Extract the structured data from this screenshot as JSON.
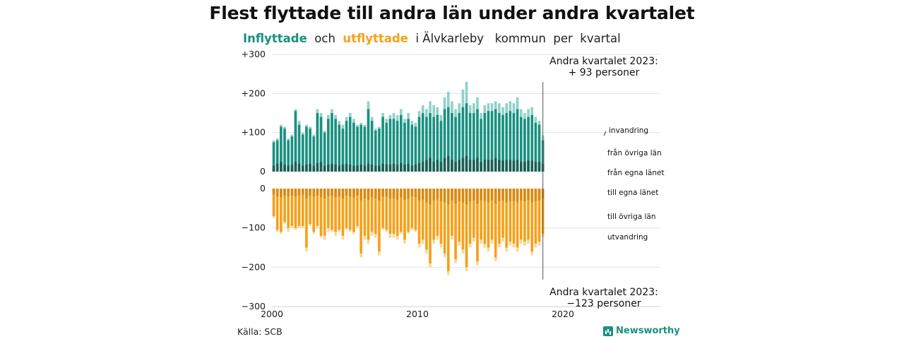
{
  "chart": {
    "title": "Flest flyttade till andra län under andra kvartalet",
    "subtitle_in": "Inflyttade",
    "subtitle_and": "och",
    "subtitle_out": "utflyttade",
    "subtitle_rest": "i Älvkarleby   kommun  per  kvartal",
    "source": "Källa: SCB",
    "brand": "Newsworthy"
  },
  "colors": {
    "in_total": "#8fd2c8",
    "in_other": "#1a9080",
    "in_own": "#1b5e55",
    "out_total": "#f9d89a",
    "out_other": "#f5a11a",
    "out_own": "#d98a12",
    "grid": "#e2e2e2",
    "text": "#1a1a1a"
  },
  "chart_data": {
    "type": "bar",
    "start": "2000 Q1",
    "x_ticks": [
      "2000",
      "2010",
      "2020"
    ],
    "y_ticks": [
      "+300",
      "+200",
      "+100",
      "0",
      "0",
      "−100",
      "−200",
      "−300"
    ],
    "ylim_in": [
      0,
      300
    ],
    "ylim_out": [
      -300,
      0
    ],
    "series_in": [
      {
        "name": "invandring",
        "values": [
          80,
          85,
          120,
          115,
          85,
          95,
          160,
          130,
          100,
          120,
          115,
          95,
          160,
          150,
          105,
          145,
          160,
          145,
          130,
          120,
          140,
          150,
          135,
          120,
          125,
          120,
          180,
          140,
          110,
          115,
          150,
          135,
          145,
          150,
          145,
          160,
          135,
          150,
          130,
          125,
          155,
          170,
          160,
          180,
          170,
          165,
          145,
          190,
          205,
          180,
          160,
          175,
          210,
          230,
          170,
          175,
          190,
          150,
          170,
          175,
          175,
          180,
          175,
          165,
          175,
          180,
          175,
          190,
          160,
          150,
          160,
          165,
          140,
          130,
          93
        ]
      },
      {
        "name": "från övriga län",
        "values": [
          75,
          80,
          115,
          110,
          80,
          90,
          155,
          120,
          95,
          115,
          110,
          90,
          150,
          140,
          100,
          135,
          150,
          135,
          120,
          110,
          130,
          140,
          125,
          115,
          120,
          115,
          160,
          130,
          105,
          110,
          140,
          125,
          135,
          135,
          130,
          145,
          125,
          135,
          120,
          115,
          140,
          150,
          140,
          150,
          140,
          145,
          130,
          160,
          165,
          150,
          140,
          150,
          165,
          175,
          150,
          150,
          160,
          135,
          150,
          155,
          155,
          160,
          150,
          145,
          150,
          155,
          150,
          160,
          140,
          135,
          140,
          145,
          125,
          120,
          80
        ]
      },
      {
        "name": "från egna länet",
        "values": [
          15,
          20,
          25,
          18,
          15,
          18,
          25,
          20,
          15,
          18,
          20,
          15,
          22,
          25,
          15,
          18,
          20,
          18,
          15,
          18,
          20,
          18,
          15,
          15,
          18,
          15,
          20,
          18,
          15,
          15,
          20,
          18,
          18,
          20,
          18,
          22,
          18,
          20,
          15,
          18,
          22,
          25,
          30,
          35,
          25,
          30,
          25,
          35,
          40,
          30,
          25,
          30,
          35,
          40,
          30,
          30,
          35,
          25,
          30,
          30,
          30,
          35,
          30,
          28,
          30,
          30,
          28,
          30,
          25,
          25,
          28,
          28,
          25,
          25,
          20
        ]
      }
    ],
    "series_out": [
      {
        "name": "utvandring",
        "values": [
          75,
          110,
          115,
          90,
          110,
          100,
          105,
          100,
          100,
          160,
          95,
          115,
          100,
          125,
          130,
          110,
          110,
          120,
          110,
          130,
          105,
          110,
          115,
          100,
          175,
          130,
          140,
          120,
          125,
          170,
          105,
          110,
          125,
          125,
          130,
          115,
          140,
          115,
          105,
          110,
          150,
          140,
          165,
          200,
          140,
          130,
          150,
          175,
          220,
          130,
          190,
          145,
          165,
          210,
          150,
          135,
          195,
          140,
          150,
          160,
          140,
          185,
          150,
          135,
          160,
          145,
          150,
          160,
          140,
          145,
          140,
          170,
          150,
          145,
          123
        ]
      },
      {
        "name": "till övriga län",
        "values": [
          70,
          105,
          110,
          85,
          100,
          95,
          100,
          95,
          95,
          150,
          90,
          110,
          95,
          120,
          120,
          100,
          105,
          110,
          105,
          120,
          100,
          105,
          110,
          95,
          165,
          120,
          130,
          110,
          115,
          160,
          100,
          105,
          115,
          115,
          120,
          110,
          130,
          110,
          100,
          105,
          140,
          130,
          155,
          190,
          130,
          120,
          140,
          165,
          210,
          120,
          180,
          135,
          155,
          200,
          140,
          125,
          185,
          130,
          140,
          150,
          130,
          175,
          140,
          125,
          150,
          135,
          140,
          150,
          130,
          135,
          130,
          160,
          140,
          135,
          115
        ]
      },
      {
        "name": "till egna länet",
        "values": [
          15,
          20,
          22,
          18,
          20,
          18,
          20,
          18,
          15,
          25,
          18,
          20,
          18,
          22,
          25,
          20,
          18,
          22,
          20,
          25,
          18,
          20,
          22,
          18,
          30,
          25,
          28,
          22,
          25,
          30,
          20,
          20,
          25,
          25,
          28,
          22,
          28,
          25,
          20,
          22,
          30,
          28,
          35,
          40,
          30,
          28,
          32,
          35,
          40,
          30,
          38,
          32,
          35,
          40,
          32,
          30,
          38,
          30,
          32,
          35,
          30,
          38,
          32,
          30,
          35,
          32,
          32,
          35,
          30,
          32,
          30,
          35,
          32,
          30,
          25
        ]
      }
    ],
    "annotation_top": [
      "Andra kvartalet 2023:",
      "+ 93 personer"
    ],
    "annotation_bottom": [
      "Andra kvartalet 2023:",
      "−123 personer"
    ]
  }
}
